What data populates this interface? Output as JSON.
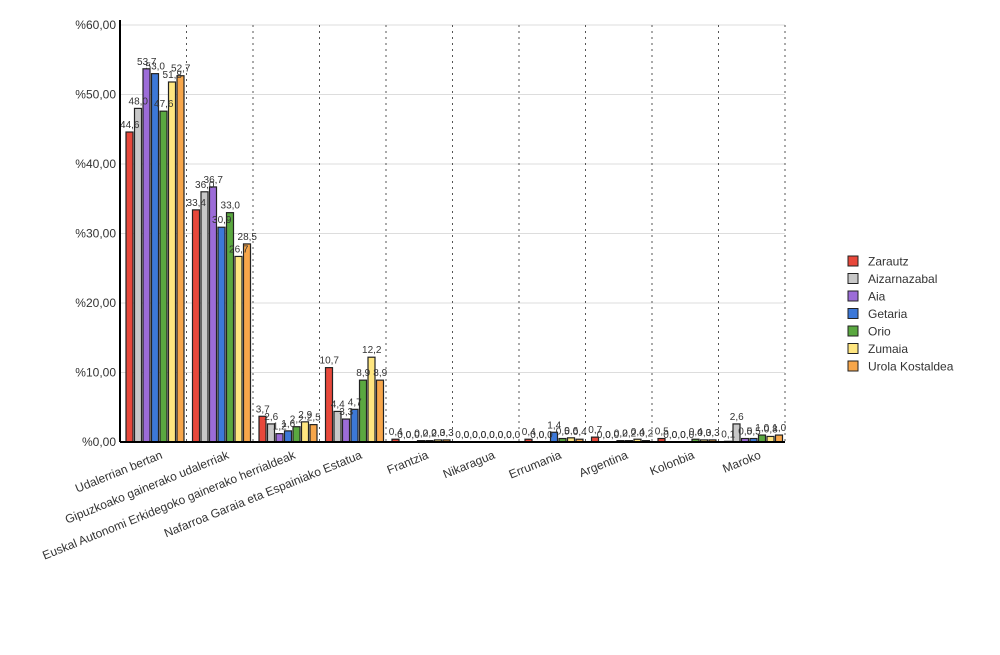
{
  "chart_data": {
    "type": "bar",
    "title": "",
    "xlabel": "",
    "ylabel": "",
    "ylim": [
      0,
      60
    ],
    "yticks": [
      "%0,00",
      "%10,00",
      "%20,00",
      "%30,00",
      "%40,00",
      "%50,00",
      "%60,00"
    ],
    "grid": true,
    "legend_position": "right",
    "categories": [
      "Udalerrian bertan",
      "Gipuzkoako gainerako udalerriak",
      "Euskal Autonomi Erkidegoko gainerako herrialdeak",
      "Nafarroa Garaia eta Espainiako Estatua",
      "Frantzia",
      "Nikaragua",
      "Errumania",
      "Argentina",
      "Kolonbia",
      "Maroko"
    ],
    "series": [
      {
        "name": "Zarautz",
        "color": "#e8483b",
        "values": [
          44.6,
          33.4,
          3.7,
          10.7,
          0.4,
          0.0,
          0.4,
          0.7,
          0.5,
          0.1
        ]
      },
      {
        "name": "Aizarnazabal",
        "color": "#c8c8c8",
        "values": [
          48.0,
          36.0,
          2.6,
          4.4,
          0.0,
          0.0,
          0.0,
          0.0,
          0.0,
          2.6
        ]
      },
      {
        "name": "Aia",
        "color": "#9c6cd8",
        "values": [
          53.7,
          36.7,
          1.2,
          3.3,
          0.0,
          0.0,
          0.0,
          0.0,
          0.0,
          0.5
        ]
      },
      {
        "name": "Getaria",
        "color": "#3c78d8",
        "values": [
          53.0,
          30.9,
          1.6,
          4.7,
          0.2,
          0.0,
          1.4,
          0.2,
          0.0,
          0.5
        ]
      },
      {
        "name": "Orio",
        "color": "#5aa840",
        "values": [
          47.6,
          33.0,
          2.2,
          8.9,
          0.2,
          0.0,
          0.5,
          0.2,
          0.4,
          1.0
        ]
      },
      {
        "name": "Zumaia",
        "color": "#ffe680",
        "values": [
          51.8,
          26.7,
          2.9,
          12.2,
          0.3,
          0.0,
          0.6,
          0.4,
          0.3,
          0.8
        ]
      },
      {
        "name": "Urola Kostaldea",
        "color": "#f7a64a",
        "values": [
          52.7,
          28.5,
          2.5,
          8.9,
          0.3,
          0.0,
          0.4,
          0.2,
          0.3,
          1.0
        ]
      }
    ],
    "data_labels": [
      [
        "44,6",
        "33,4",
        "3,7",
        "10,7",
        "0,4",
        "0,0",
        "0,4",
        "0,7",
        "0,5",
        "0,1"
      ],
      [
        "48,0",
        "36,0",
        "2,6",
        "4,4",
        "0,0",
        "0,0",
        "0,0",
        "0,0",
        "0,0",
        "2,6"
      ],
      [
        "53,7",
        "36,7",
        "1,2",
        "3,3",
        "0,0",
        "0,0",
        "0,0",
        "0,0",
        "0,0",
        "0,5"
      ],
      [
        "53,0",
        "30,9",
        "1,6",
        "4,7",
        "0,2",
        "0,0",
        "1,4",
        "0,2",
        "0,0",
        "0,5"
      ],
      [
        "47,6",
        "33,0",
        "2,2",
        "8,9",
        "0,2",
        "0,0",
        "0,5",
        "0,2",
        "0,4",
        "1,0"
      ],
      [
        "51,8",
        "26,7",
        "2,9",
        "12,2",
        "0,3",
        "0,0",
        "0,6",
        "0,4",
        "0,3",
        "0,8"
      ],
      [
        "52,7",
        "28,5",
        "2,5",
        "8,9",
        "0,3",
        "0,0",
        "0,4",
        "0,2",
        "0,3",
        "1,0"
      ]
    ]
  }
}
